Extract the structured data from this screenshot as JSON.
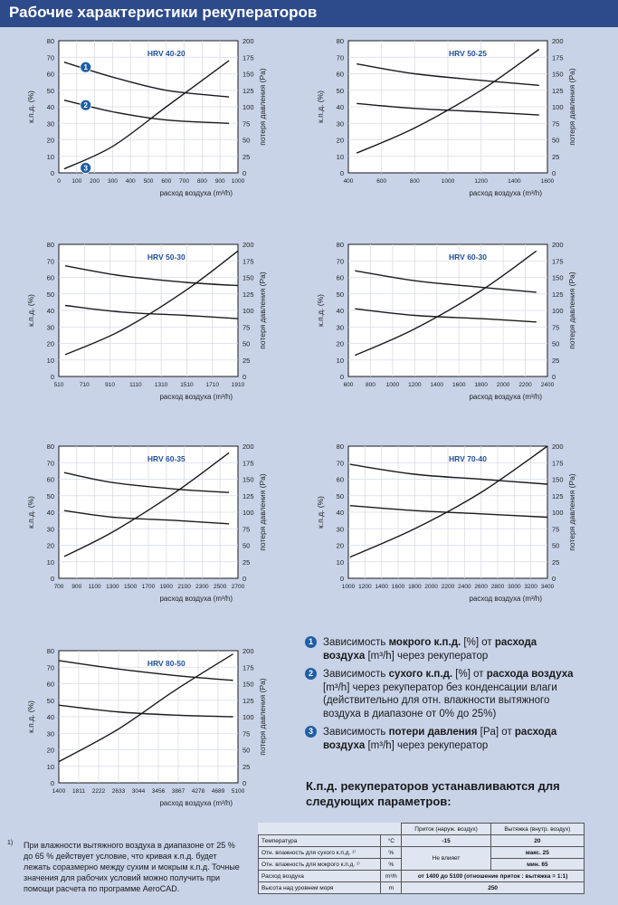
{
  "header": {
    "title": "Рабочие характеристики рекуператоров"
  },
  "common": {
    "left_axis_label": "к.п.д. (%)",
    "right_axis_label": "потеря давления (Pa)",
    "x_axis_label": "расход воздуха (m³/h)",
    "left_ticks": [
      "0",
      "10",
      "20",
      "30",
      "40",
      "50",
      "60",
      "70",
      "80"
    ],
    "right_ticks": [
      "0",
      "25",
      "50",
      "75",
      "100",
      "125",
      "150",
      "175",
      "200"
    ]
  },
  "chart_data": [
    {
      "type": "line",
      "title": "HRV 40-20",
      "xlim": [
        0,
        1000
      ],
      "x_ticks": [
        "0",
        "100",
        "200",
        "300",
        "400",
        "500",
        "600",
        "700",
        "800",
        "900",
        "1000"
      ],
      "ylim": [
        0,
        80
      ],
      "y2lim": [
        0,
        200
      ],
      "series": [
        {
          "axis": "left",
          "x": [
            30,
            300,
            600,
            950
          ],
          "values": [
            67,
            58,
            50,
            46
          ]
        },
        {
          "axis": "left",
          "x": [
            30,
            300,
            600,
            950
          ],
          "values": [
            44,
            37,
            32,
            30
          ]
        },
        {
          "axis": "right",
          "x": [
            30,
            300,
            600,
            950
          ],
          "values": [
            6,
            40,
            100,
            170
          ]
        }
      ],
      "markers": [
        {
          "label": "1",
          "x": 150,
          "y": 64
        },
        {
          "label": "2",
          "x": 150,
          "y": 41
        },
        {
          "label": "3",
          "x": 150,
          "y": 3
        }
      ]
    },
    {
      "type": "line",
      "title": "HRV 50-25",
      "xlim": [
        400,
        1600
      ],
      "x_ticks": [
        "400",
        "600",
        "800",
        "1000",
        "1200",
        "1400",
        "1600"
      ],
      "ylim": [
        0,
        80
      ],
      "y2lim": [
        0,
        200
      ],
      "series": [
        {
          "axis": "left",
          "x": [
            450,
            800,
            1200,
            1550
          ],
          "values": [
            66,
            60,
            56,
            53
          ]
        },
        {
          "axis": "left",
          "x": [
            450,
            800,
            1200,
            1550
          ],
          "values": [
            42,
            39,
            37,
            35
          ]
        },
        {
          "axis": "right",
          "x": [
            450,
            800,
            1200,
            1550
          ],
          "values": [
            30,
            68,
            125,
            187
          ]
        }
      ]
    },
    {
      "type": "line",
      "title": "HRV 50-30",
      "xlim": [
        510,
        1910
      ],
      "x_ticks": [
        "510",
        "710",
        "910",
        "1110",
        "1310",
        "1510",
        "1710",
        "1910"
      ],
      "ylim": [
        0,
        80
      ],
      "y2lim": [
        0,
        200
      ],
      "series": [
        {
          "axis": "left",
          "x": [
            560,
            1000,
            1500,
            1910
          ],
          "values": [
            67,
            61,
            57,
            55
          ]
        },
        {
          "axis": "left",
          "x": [
            560,
            1000,
            1500,
            1910
          ],
          "values": [
            43,
            39,
            37,
            35
          ]
        },
        {
          "axis": "right",
          "x": [
            560,
            1000,
            1500,
            1910
          ],
          "values": [
            33,
            70,
            130,
            190
          ]
        }
      ]
    },
    {
      "type": "line",
      "title": "HRV 60-30",
      "xlim": [
        600,
        2400
      ],
      "x_ticks": [
        "600",
        "800",
        "1000",
        "1200",
        "1400",
        "1600",
        "1800",
        "2000",
        "2200",
        "2400"
      ],
      "ylim": [
        0,
        80
      ],
      "y2lim": [
        0,
        200
      ],
      "series": [
        {
          "axis": "left",
          "x": [
            660,
            1200,
            1800,
            2300
          ],
          "values": [
            64,
            58,
            54,
            51
          ]
        },
        {
          "axis": "left",
          "x": [
            660,
            1200,
            1800,
            2300
          ],
          "values": [
            41,
            37,
            35,
            33
          ]
        },
        {
          "axis": "right",
          "x": [
            660,
            1200,
            1800,
            2300
          ],
          "values": [
            32,
            72,
            130,
            190
          ]
        }
      ]
    },
    {
      "type": "line",
      "title": "HRV 60-35",
      "xlim": [
        700,
        2700
      ],
      "x_ticks": [
        "700",
        "900",
        "1100",
        "1300",
        "1500",
        "1700",
        "1900",
        "2100",
        "2300",
        "2500",
        "2700"
      ],
      "ylim": [
        0,
        80
      ],
      "y2lim": [
        0,
        200
      ],
      "series": [
        {
          "axis": "left",
          "x": [
            760,
            1300,
            2000,
            2600
          ],
          "values": [
            64,
            58,
            54,
            52
          ]
        },
        {
          "axis": "left",
          "x": [
            760,
            1300,
            2000,
            2600
          ],
          "values": [
            41,
            37,
            35,
            33
          ]
        },
        {
          "axis": "right",
          "x": [
            760,
            1300,
            2000,
            2600
          ],
          "values": [
            33,
            70,
            130,
            190
          ]
        }
      ]
    },
    {
      "type": "line",
      "title": "HRV 70-40",
      "xlim": [
        1000,
        3400
      ],
      "x_ticks": [
        "1000",
        "1200",
        "1400",
        "1600",
        "1800",
        "2000",
        "2200",
        "2400",
        "2600",
        "2800",
        "3000",
        "3200",
        "3400"
      ],
      "ylim": [
        0,
        80
      ],
      "y2lim": [
        0,
        200
      ],
      "series": [
        {
          "axis": "left",
          "x": [
            1020,
            1800,
            2600,
            3400
          ],
          "values": [
            69,
            63,
            60,
            57
          ]
        },
        {
          "axis": "left",
          "x": [
            1020,
            1800,
            2600,
            3400
          ],
          "values": [
            44,
            41,
            39,
            37
          ]
        },
        {
          "axis": "right",
          "x": [
            1020,
            1800,
            2600,
            3400
          ],
          "values": [
            32,
            75,
            130,
            200
          ]
        }
      ]
    },
    {
      "type": "line",
      "title": "HRV 80-50",
      "xlim": [
        1400,
        5100
      ],
      "x_ticks": [
        "1400",
        "1811",
        "2222",
        "2633",
        "3044",
        "3456",
        "3867",
        "4278",
        "4689",
        "5100"
      ],
      "ylim": [
        0,
        80
      ],
      "y2lim": [
        0,
        200
      ],
      "series": [
        {
          "axis": "left",
          "x": [
            1400,
            2600,
            3800,
            5000
          ],
          "values": [
            74,
            69,
            65,
            62
          ]
        },
        {
          "axis": "left",
          "x": [
            1400,
            2600,
            3800,
            5000
          ],
          "values": [
            47,
            43,
            41,
            40
          ]
        },
        {
          "axis": "right",
          "x": [
            1400,
            2600,
            3800,
            5000
          ],
          "values": [
            32,
            80,
            140,
            195
          ]
        }
      ]
    }
  ],
  "legend": [
    {
      "num": "1",
      "parts": [
        "Зависимость ",
        "мокрого к.п.д.",
        " [%] от ",
        "расхода воздуха",
        " [m³/h] через рекуператор"
      ]
    },
    {
      "num": "2",
      "parts": [
        "Зависимость ",
        "сухого к.п.д.",
        " [%] от ",
        "расхода воз­духа",
        " [m³/h] через рекуператор без конденсации влаги (действительно для отн. влажности вытяжного воздуха в диапазоне от 0% до 25%)"
      ]
    },
    {
      "num": "3",
      "parts": [
        "Зависимость ",
        "потери давления",
        " [Pa] от ",
        "расхода воздуха",
        " [m³/h] через рекуператор"
      ]
    }
  ],
  "params_title": "К.п.д. рекуператоров устанавливаются для следующих параметров:",
  "footnote": {
    "mark": "1)",
    "text": "При влажности вытяжного воздуха в диапазоне от 25 % до 65 % действует условие, что кривая к.п.д. будет лежать соразмерно между сухим и мокрым к.п.д. Точные значения для рабочих условий можно получить при помощи расчета по программе AeroCAD."
  },
  "table": {
    "col_supply": "Приток (наруж. воздух)",
    "col_exhaust": "Вытяжка (внутр. воздух)",
    "rows": [
      {
        "label": "Температура",
        "unit": "°C",
        "supply": "-15",
        "exhaust": "20"
      },
      {
        "label": "Отн. влажность для сухого к.п.д. ¹⁾",
        "unit": "%",
        "supply": "Не влияет",
        "exhaust": "макс. 25"
      },
      {
        "label": "Отн. влажность для мокрого к.п.д. ¹⁾",
        "unit": "%",
        "exhaust": "мин. 65"
      },
      {
        "label": "Расход воздуха",
        "unit": "m³/h",
        "span": "от 1400 до 5100 (отношение приток : вытяжка = 1:1)"
      },
      {
        "label": "Высота над уровнем моря",
        "unit": "m",
        "span": "250"
      }
    ]
  }
}
